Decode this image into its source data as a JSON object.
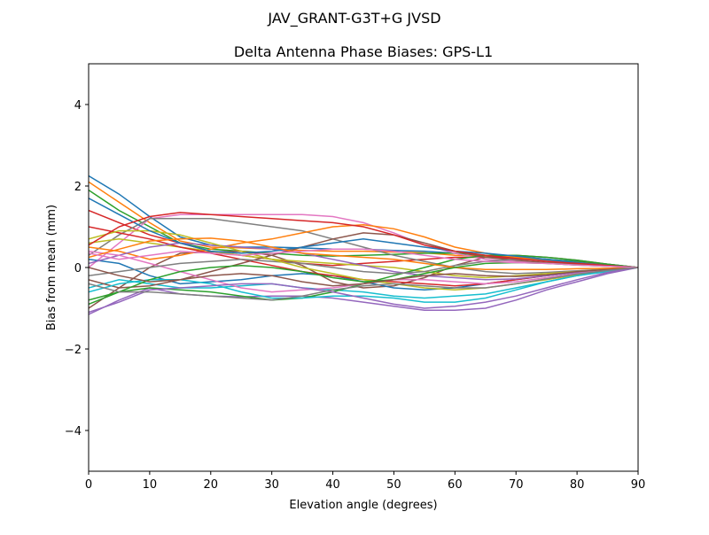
{
  "suptitle": "JAV_GRANT-G3T+G JVSD",
  "chart_data": {
    "type": "line",
    "title": "Delta Antenna Phase Biases: GPS-L1",
    "xlabel": "Elevation angle (degrees)",
    "ylabel": "Bias from mean (mm)",
    "xlim": [
      0,
      90
    ],
    "ylim": [
      -5,
      5
    ],
    "xticks": [
      0,
      10,
      20,
      30,
      40,
      50,
      60,
      70,
      80,
      90
    ],
    "yticks": [
      -4,
      -2,
      0,
      2,
      4
    ],
    "ytick_labels": [
      "−4",
      "−2",
      "0",
      "2",
      "4"
    ],
    "grid": false,
    "x": [
      0,
      5,
      10,
      15,
      20,
      25,
      30,
      35,
      40,
      45,
      50,
      55,
      60,
      65,
      70,
      75,
      80,
      85,
      90
    ],
    "colors": [
      "#1f77b4",
      "#ff7f0e",
      "#2ca02c",
      "#d62728",
      "#9467bd",
      "#8c564b",
      "#e377c2",
      "#7f7f7f",
      "#bcbd22",
      "#17becf"
    ],
    "series": [
      [
        2.25,
        1.8,
        1.25,
        0.75,
        0.55,
        0.5,
        0.5,
        0.48,
        0.45,
        0.45,
        0.42,
        0.4,
        0.35,
        0.3,
        0.25,
        0.2,
        0.15,
        0.08,
        0
      ],
      [
        2.1,
        1.6,
        1.1,
        0.65,
        0.5,
        0.48,
        0.45,
        0.42,
        0.4,
        0.4,
        0.38,
        0.36,
        0.3,
        0.28,
        0.22,
        0.18,
        0.12,
        0.06,
        0
      ],
      [
        1.9,
        1.4,
        1.0,
        0.6,
        0.45,
        0.4,
        0.35,
        0.3,
        0.28,
        0.3,
        0.32,
        0.35,
        0.35,
        0.3,
        0.25,
        0.2,
        0.14,
        0.07,
        0
      ],
      [
        1.4,
        1.1,
        0.8,
        0.6,
        0.4,
        0.3,
        0.2,
        0.1,
        0.05,
        0.1,
        0.15,
        0.2,
        0.25,
        0.25,
        0.22,
        0.18,
        0.12,
        0.06,
        0
      ],
      [
        -1.15,
        -0.8,
        -0.5,
        -0.65,
        -0.7,
        -0.72,
        -0.7,
        -0.7,
        -0.75,
        -0.85,
        -0.95,
        -1.05,
        -1.05,
        -1.0,
        -0.8,
        -0.55,
        -0.35,
        -0.15,
        0
      ],
      [
        -1.0,
        -0.5,
        0.0,
        0.35,
        0.38,
        0.4,
        0.3,
        0.05,
        -0.35,
        -0.5,
        -0.45,
        -0.25,
        0.05,
        0.25,
        0.3,
        0.25,
        0.18,
        0.08,
        0
      ],
      [
        0.0,
        0.6,
        1.2,
        1.3,
        1.3,
        1.3,
        1.3,
        1.3,
        1.25,
        1.1,
        0.85,
        0.55,
        0.35,
        0.2,
        0.15,
        0.1,
        0.08,
        0.04,
        0
      ],
      [
        0.3,
        0.8,
        1.2,
        1.2,
        1.2,
        1.1,
        1.0,
        0.9,
        0.7,
        0.5,
        0.3,
        0.15,
        0.0,
        -0.1,
        -0.15,
        -0.12,
        -0.08,
        -0.04,
        0
      ],
      [
        0.6,
        0.7,
        0.6,
        0.5,
        0.4,
        0.3,
        0.2,
        0.15,
        0.1,
        0.05,
        0.0,
        -0.1,
        -0.2,
        -0.25,
        -0.2,
        -0.15,
        -0.1,
        -0.05,
        0
      ],
      [
        -0.5,
        -0.3,
        -0.4,
        -0.5,
        -0.5,
        -0.45,
        -0.4,
        -0.5,
        -0.55,
        -0.6,
        -0.7,
        -0.75,
        -0.7,
        -0.65,
        -0.5,
        -0.35,
        -0.2,
        -0.1,
        0
      ],
      [
        0.2,
        0.1,
        -0.2,
        -0.4,
        -0.35,
        -0.3,
        -0.2,
        -0.15,
        -0.2,
        -0.35,
        -0.5,
        -0.55,
        -0.5,
        -0.4,
        -0.3,
        -0.2,
        -0.12,
        -0.05,
        0
      ],
      [
        0.5,
        0.4,
        0.2,
        0.3,
        0.45,
        0.6,
        0.7,
        0.85,
        1.0,
        1.05,
        0.95,
        0.75,
        0.5,
        0.35,
        0.25,
        0.18,
        0.12,
        0.05,
        0
      ],
      [
        -0.8,
        -0.6,
        -0.5,
        -0.55,
        -0.6,
        -0.7,
        -0.8,
        -0.75,
        -0.6,
        -0.4,
        -0.2,
        0.0,
        0.2,
        0.3,
        0.3,
        0.25,
        0.18,
        0.08,
        0
      ],
      [
        1.0,
        0.85,
        0.7,
        0.5,
        0.35,
        0.2,
        0.05,
        -0.1,
        -0.2,
        -0.3,
        -0.35,
        -0.4,
        -0.45,
        -0.4,
        -0.3,
        -0.2,
        -0.12,
        -0.05,
        0
      ],
      [
        0.1,
        0.3,
        0.5,
        0.6,
        0.55,
        0.5,
        0.45,
        0.35,
        0.2,
        0.05,
        -0.1,
        -0.2,
        -0.25,
        -0.3,
        -0.28,
        -0.2,
        -0.12,
        -0.05,
        0
      ],
      [
        -0.3,
        -0.5,
        -0.45,
        -0.3,
        -0.1,
        0.1,
        0.3,
        0.5,
        0.7,
        0.85,
        0.8,
        0.6,
        0.4,
        0.25,
        0.18,
        0.12,
        0.08,
        0.04,
        0
      ],
      [
        0.4,
        0.3,
        0.1,
        -0.1,
        -0.3,
        -0.5,
        -0.6,
        -0.55,
        -0.5,
        -0.4,
        -0.3,
        -0.3,
        -0.35,
        -0.4,
        -0.35,
        -0.25,
        -0.15,
        -0.06,
        0
      ],
      [
        -0.2,
        -0.1,
        0.0,
        0.1,
        0.15,
        0.2,
        0.15,
        0.1,
        0.0,
        -0.1,
        -0.15,
        -0.1,
        0.05,
        0.15,
        0.2,
        0.18,
        0.12,
        0.05,
        0
      ],
      [
        0.7,
        0.9,
        0.9,
        0.8,
        0.6,
        0.4,
        0.2,
        0.0,
        -0.15,
        -0.3,
        -0.4,
        -0.5,
        -0.55,
        -0.5,
        -0.4,
        -0.3,
        -0.18,
        -0.08,
        0
      ],
      [
        -0.6,
        -0.4,
        -0.3,
        -0.3,
        -0.4,
        -0.6,
        -0.75,
        -0.75,
        -0.7,
        -0.7,
        -0.75,
        -0.85,
        -0.85,
        -0.75,
        -0.55,
        -0.35,
        -0.2,
        -0.08,
        0
      ],
      [
        1.7,
        1.3,
        0.9,
        0.6,
        0.4,
        0.35,
        0.4,
        0.5,
        0.6,
        0.7,
        0.6,
        0.5,
        0.4,
        0.35,
        0.28,
        0.2,
        0.12,
        0.05,
        0
      ],
      [
        0.25,
        0.45,
        0.65,
        0.7,
        0.72,
        0.65,
        0.5,
        0.35,
        0.3,
        0.25,
        0.2,
        0.1,
        0.0,
        -0.05,
        -0.05,
        -0.05,
        -0.03,
        -0.02,
        0
      ],
      [
        -0.9,
        -0.6,
        -0.3,
        -0.1,
        0.0,
        0.05,
        0.0,
        -0.1,
        -0.25,
        -0.35,
        -0.3,
        -0.15,
        0.0,
        0.1,
        0.12,
        0.1,
        0.06,
        0.03,
        0
      ],
      [
        0.55,
        1.0,
        1.25,
        1.35,
        1.3,
        1.25,
        1.2,
        1.15,
        1.1,
        1.0,
        0.8,
        0.55,
        0.4,
        0.3,
        0.22,
        0.15,
        0.1,
        0.05,
        0
      ],
      [
        -1.1,
        -0.85,
        -0.55,
        -0.5,
        -0.45,
        -0.4,
        -0.4,
        -0.5,
        -0.6,
        -0.75,
        -0.9,
        -1.0,
        -0.95,
        -0.85,
        -0.7,
        -0.5,
        -0.3,
        -0.12,
        0
      ],
      [
        0.0,
        -0.2,
        -0.35,
        -0.3,
        -0.2,
        -0.15,
        -0.2,
        -0.35,
        -0.45,
        -0.4,
        -0.3,
        -0.2,
        -0.15,
        -0.2,
        -0.22,
        -0.18,
        -0.1,
        -0.05,
        0
      ],
      [
        0.35,
        0.2,
        0.3,
        0.4,
        0.35,
        0.3,
        0.35,
        0.4,
        0.45,
        0.45,
        0.4,
        0.3,
        0.2,
        0.15,
        0.12,
        0.1,
        0.06,
        0.03,
        0
      ],
      [
        -0.4,
        -0.6,
        -0.6,
        -0.65,
        -0.7,
        -0.75,
        -0.8,
        -0.7,
        -0.55,
        -0.45,
        -0.4,
        -0.45,
        -0.5,
        -0.5,
        -0.4,
        -0.28,
        -0.16,
        -0.07,
        0
      ]
    ]
  }
}
